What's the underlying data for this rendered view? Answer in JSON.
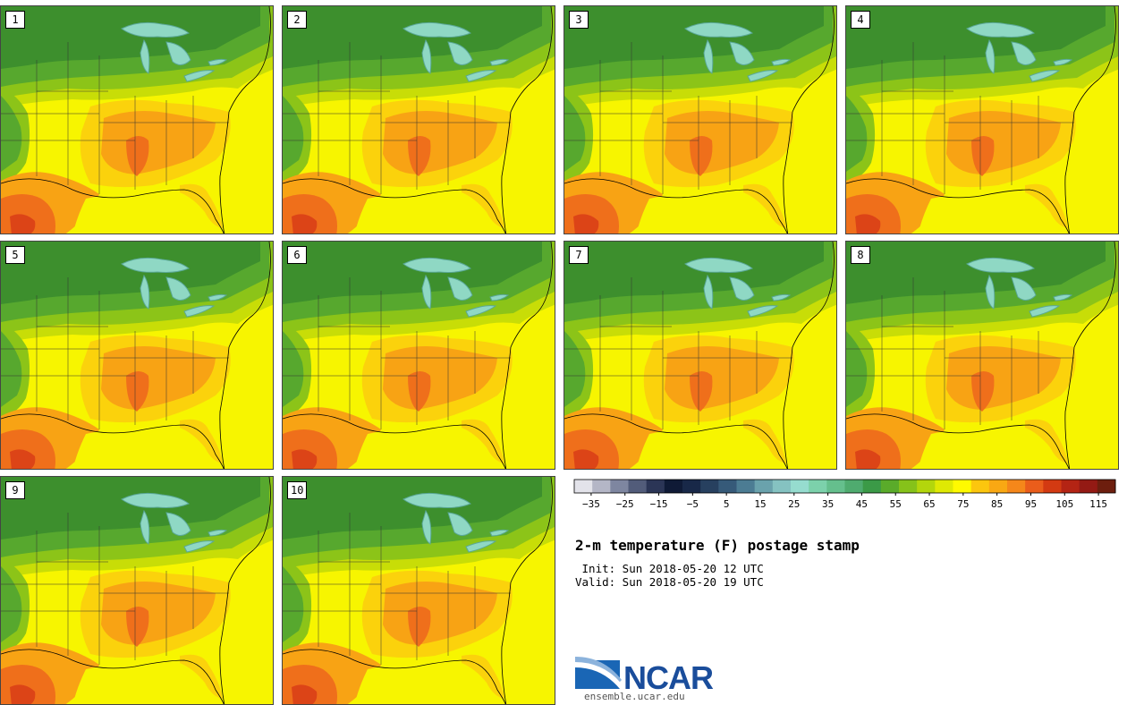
{
  "title": "2-m temperature (F) postage stamp",
  "init": " Init: Sun 2018-05-20 12 UTC",
  "valid": "Valid: Sun 2018-05-20 19 UTC",
  "logo": {
    "name": "NCAR",
    "url": "ensemble.ucar.edu",
    "colors": {
      "blue": "#1a66b5",
      "navy": "#1a4d9b"
    }
  },
  "members": [
    "1",
    "2",
    "3",
    "4",
    "5",
    "6",
    "7",
    "8",
    "9",
    "10"
  ],
  "colorbar": {
    "ticks": [
      -35,
      -25,
      -15,
      -5,
      5,
      15,
      25,
      35,
      45,
      55,
      65,
      75,
      85,
      95,
      105,
      115
    ],
    "min": -40,
    "max": 120,
    "step": 5,
    "colors": [
      "#e3e3ea",
      "#b4b6c6",
      "#7e86a0",
      "#525c7a",
      "#2b3556",
      "#0f1a36",
      "#182848",
      "#27405f",
      "#365a79",
      "#4c7c93",
      "#6aa2ac",
      "#85c2c1",
      "#96dccf",
      "#7cd1ab",
      "#65bf8d",
      "#4fab6f",
      "#3b9a47",
      "#5aab2a",
      "#86c21a",
      "#b3d60c",
      "#dfe904",
      "#fffa00",
      "#fcc60e",
      "#f9a813",
      "#f5871a",
      "#ea5d1b",
      "#d33a12",
      "#b42414",
      "#941a14",
      "#6d1e0e"
    ]
  },
  "map_colors": {
    "dark_green": "#3d8f2d",
    "green": "#57a82e",
    "light_green": "#8cc418",
    "yellow_green": "#c8dd07",
    "yellow": "#f6f400",
    "gold": "#fbd20c",
    "orange": "#f8a314",
    "deep_orange": "#ef6f1b",
    "red_orange": "#dc4417",
    "lake": "#8fd8c4",
    "lake_shadow": "#5aa897",
    "ocean_yellow": "#f7f500"
  }
}
